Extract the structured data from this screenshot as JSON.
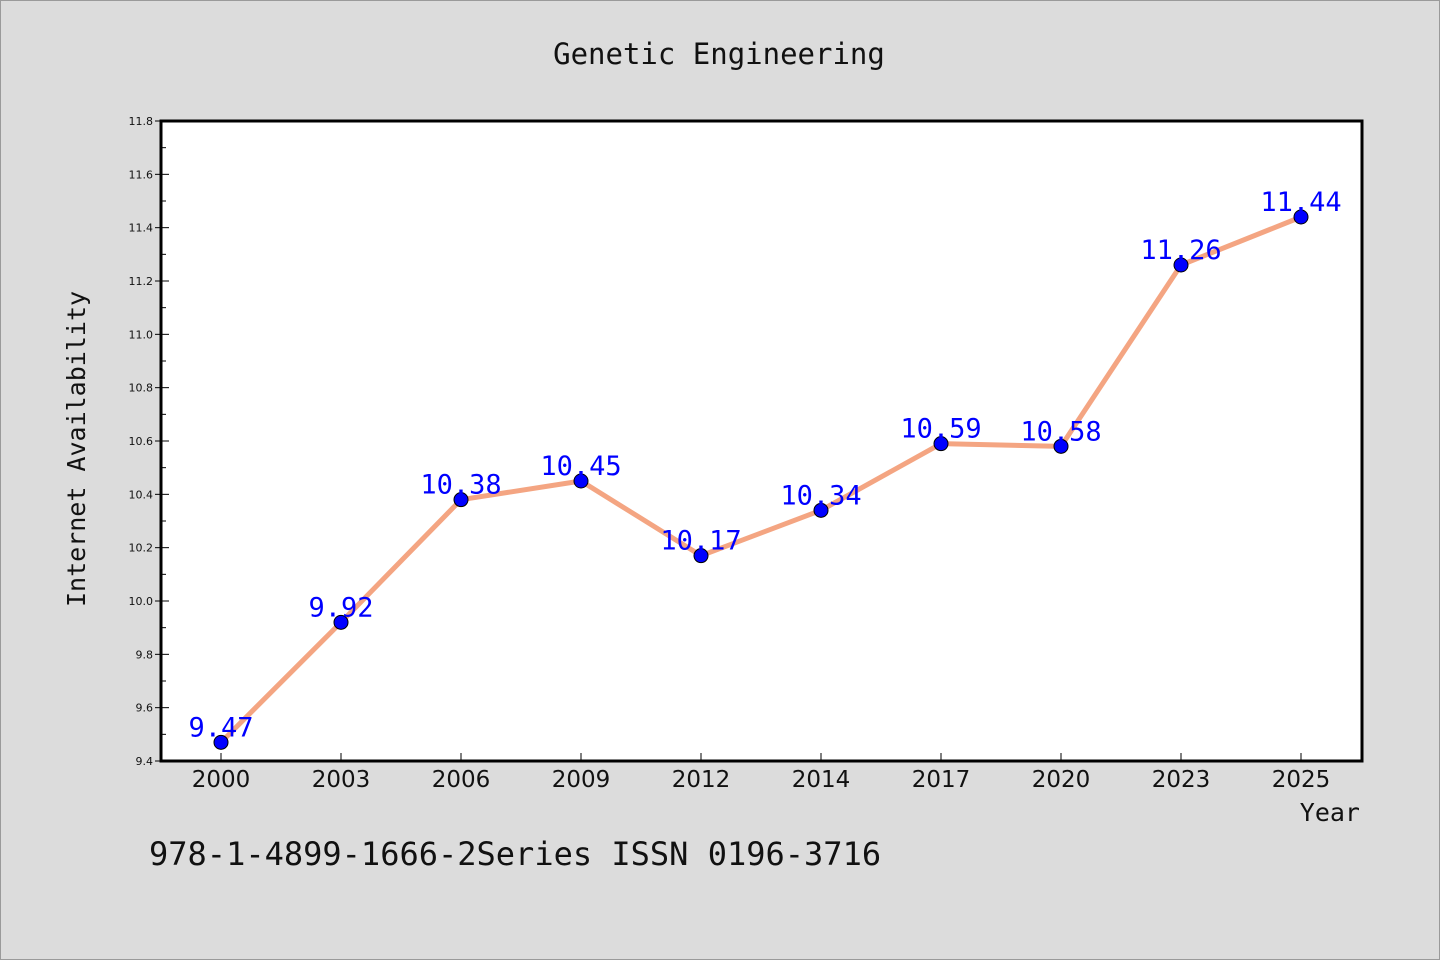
{
  "chart_data": {
    "type": "line",
    "title": "Genetic Engineering",
    "xlabel": "Year",
    "ylabel": "Internet Availability",
    "categories": [
      "2000",
      "2003",
      "2006",
      "2009",
      "2012",
      "2014",
      "2017",
      "2020",
      "2023",
      "2025"
    ],
    "series": [
      {
        "values": [
          9.47,
          9.92,
          10.38,
          10.45,
          10.17,
          10.34,
          10.59,
          10.58,
          11.26,
          11.44
        ]
      }
    ],
    "data_labels": [
      "9.47",
      "9.92",
      "10.38",
      "10.45",
      "10.17",
      "10.34",
      "10.59",
      "10.58",
      "11.26",
      "11.44"
    ],
    "ylim": [
      9.4,
      11.8
    ],
    "yticks": [
      "9.4",
      "9.6",
      "9.8",
      "10.0",
      "10.2",
      "10.4",
      "10.6",
      "10.8",
      "11.0",
      "11.2",
      "11.4",
      "11.6",
      "11.8"
    ],
    "grid": false,
    "legend": false,
    "colors": {
      "line": "#f4a582",
      "marker": "#0000ff",
      "label": "#0000ff",
      "background": "#dcdcdc",
      "plot_background": "#ffffff"
    }
  },
  "footer_text": "978-1-4899-1666-2Series ISSN 0196-3716"
}
